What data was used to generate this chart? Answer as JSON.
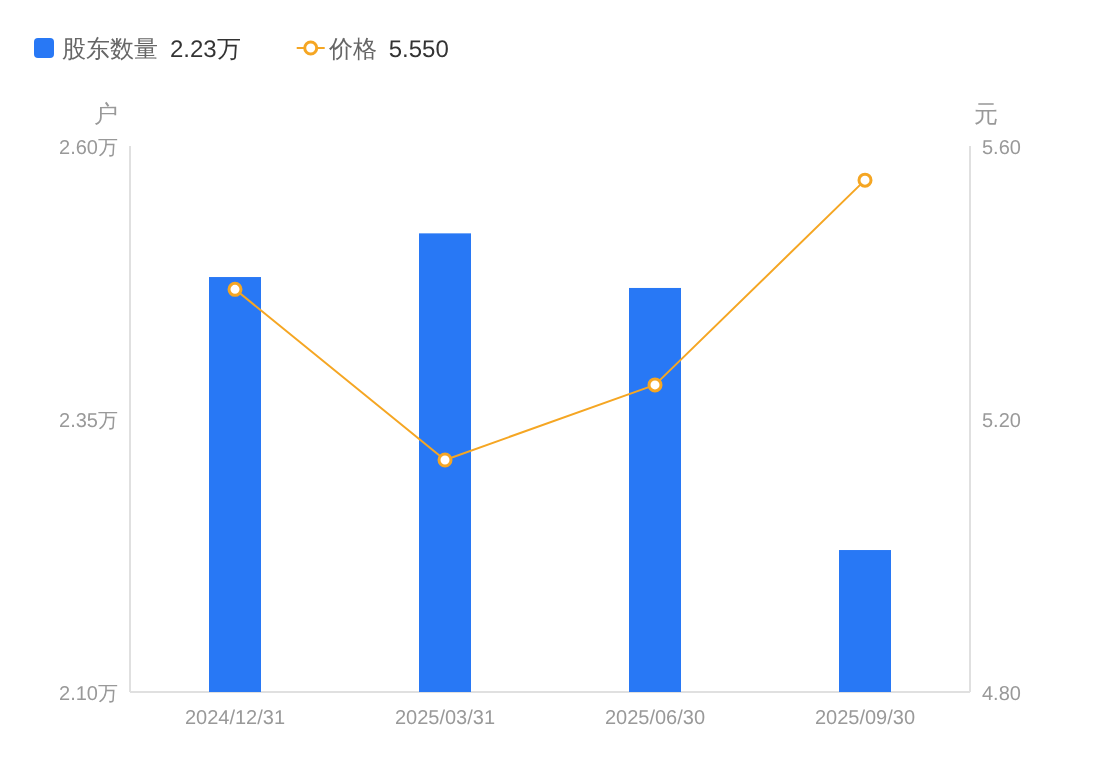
{
  "chart_data": {
    "type": "bar",
    "categories": [
      "2024/12/31",
      "2025/03/31",
      "2025/06/30",
      "2025/09/30"
    ],
    "ylabel": "户",
    "y2label": "元",
    "ylim": [
      2.1,
      2.6
    ],
    "yticks": [
      {
        "value": 2.1,
        "label": "2.10万"
      },
      {
        "value": 2.35,
        "label": "2.35万"
      },
      {
        "value": 2.6,
        "label": "2.60万"
      }
    ],
    "y2lim": [
      4.8,
      5.6
    ],
    "y2ticks": [
      {
        "value": 4.8,
        "label": "4.80"
      },
      {
        "value": 5.2,
        "label": "5.20"
      },
      {
        "value": 5.6,
        "label": "5.60"
      }
    ],
    "series": [
      {
        "name": "股东数量",
        "color": "#2878f5",
        "values": [
          2.48,
          2.52,
          2.47,
          2.23
        ]
      },
      {
        "name": "价格",
        "type": "line",
        "axis": "y2",
        "color": "#f5a623",
        "marker": "circle",
        "values": [
          5.39,
          5.14,
          5.25,
          5.55
        ]
      }
    ],
    "annotations": [
      "2.23万",
      "5.550"
    ],
    "legend": "top left",
    "grid": false
  }
}
